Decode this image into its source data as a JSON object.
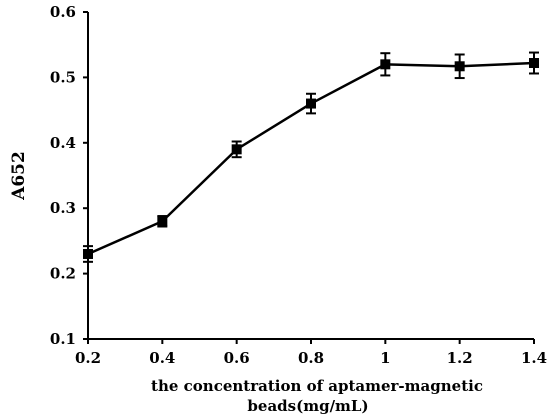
{
  "chart_data": {
    "type": "line",
    "title": "",
    "xlabel_lines": [
      "the concentration of aptamer-magnetic",
      "beads(mg/mL)"
    ],
    "ylabel": "A652",
    "x": [
      0.2,
      0.4,
      0.6,
      0.8,
      1.0,
      1.2,
      1.4
    ],
    "y": [
      0.23,
      0.28,
      0.39,
      0.46,
      0.52,
      0.517,
      0.522
    ],
    "error": [
      0.012,
      0.008,
      0.012,
      0.015,
      0.017,
      0.018,
      0.016
    ],
    "xlim": [
      0.2,
      1.4
    ],
    "ylim": [
      0.1,
      0.6
    ],
    "x_ticks": [
      "0.2",
      "0.4",
      "0.6",
      "0.8",
      "1",
      "1.2",
      "1.4"
    ],
    "y_ticks": [
      "0.1",
      "0.2",
      "0.3",
      "0.4",
      "0.5",
      "0.6"
    ],
    "marker": "square",
    "grid": false,
    "line_color": "#000000"
  }
}
